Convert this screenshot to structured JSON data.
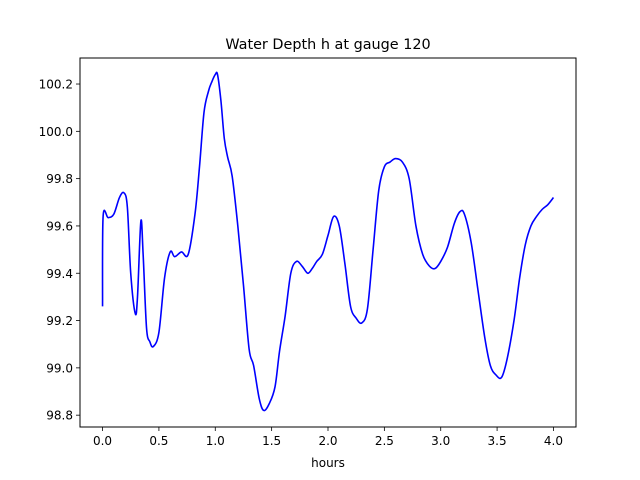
{
  "chart_data": {
    "type": "line",
    "title": "Water Depth h at gauge 120",
    "xlabel": "hours",
    "ylabel": "",
    "xlim": [
      -0.2,
      4.2
    ],
    "ylim": [
      98.75,
      100.31
    ],
    "xticks": [
      0.0,
      0.5,
      1.0,
      1.5,
      2.0,
      2.5,
      3.0,
      3.5,
      4.0
    ],
    "xtick_labels": [
      "0.0",
      "0.5",
      "1.0",
      "1.5",
      "2.0",
      "2.5",
      "3.0",
      "3.5",
      "4.0"
    ],
    "yticks": [
      98.8,
      99.0,
      99.2,
      99.4,
      99.6,
      99.8,
      100.0,
      100.2
    ],
    "ytick_labels": [
      "98.8",
      "99.0",
      "99.2",
      "99.4",
      "99.6",
      "99.8",
      "100.0",
      "100.2"
    ],
    "grid": false,
    "series": [
      {
        "color": "#0000ff",
        "points": [
          [
            0.0,
            99.26
          ],
          [
            0.005,
            99.64
          ],
          [
            0.05,
            99.635
          ],
          [
            0.1,
            99.65
          ],
          [
            0.15,
            99.72
          ],
          [
            0.19,
            99.74
          ],
          [
            0.22,
            99.68
          ],
          [
            0.25,
            99.4
          ],
          [
            0.29,
            99.23
          ],
          [
            0.31,
            99.3
          ],
          [
            0.34,
            99.62
          ],
          [
            0.36,
            99.48
          ],
          [
            0.39,
            99.17
          ],
          [
            0.42,
            99.11
          ],
          [
            0.45,
            99.09
          ],
          [
            0.5,
            99.15
          ],
          [
            0.55,
            99.38
          ],
          [
            0.6,
            99.49
          ],
          [
            0.64,
            99.47
          ],
          [
            0.7,
            99.49
          ],
          [
            0.76,
            99.48
          ],
          [
            0.82,
            99.65
          ],
          [
            0.86,
            99.85
          ],
          [
            0.9,
            100.08
          ],
          [
            0.94,
            100.17
          ],
          [
            0.97,
            100.21
          ],
          [
            1.0,
            100.24
          ],
          [
            1.02,
            100.24
          ],
          [
            1.05,
            100.13
          ],
          [
            1.08,
            99.97
          ],
          [
            1.11,
            99.89
          ],
          [
            1.15,
            99.81
          ],
          [
            1.2,
            99.6
          ],
          [
            1.25,
            99.35
          ],
          [
            1.3,
            99.08
          ],
          [
            1.34,
            99.01
          ],
          [
            1.39,
            98.87
          ],
          [
            1.43,
            98.82
          ],
          [
            1.48,
            98.85
          ],
          [
            1.53,
            98.92
          ],
          [
            1.57,
            99.07
          ],
          [
            1.62,
            99.22
          ],
          [
            1.67,
            99.4
          ],
          [
            1.72,
            99.45
          ],
          [
            1.77,
            99.43
          ],
          [
            1.82,
            99.4
          ],
          [
            1.86,
            99.42
          ],
          [
            1.9,
            99.45
          ],
          [
            1.95,
            99.48
          ],
          [
            2.0,
            99.56
          ],
          [
            2.05,
            99.64
          ],
          [
            2.1,
            99.6
          ],
          [
            2.15,
            99.44
          ],
          [
            2.2,
            99.26
          ],
          [
            2.25,
            99.21
          ],
          [
            2.3,
            99.19
          ],
          [
            2.35,
            99.25
          ],
          [
            2.4,
            99.5
          ],
          [
            2.45,
            99.75
          ],
          [
            2.5,
            99.85
          ],
          [
            2.55,
            99.87
          ],
          [
            2.6,
            99.885
          ],
          [
            2.66,
            99.87
          ],
          [
            2.72,
            99.8
          ],
          [
            2.78,
            99.6
          ],
          [
            2.84,
            99.48
          ],
          [
            2.9,
            99.43
          ],
          [
            2.95,
            99.42
          ],
          [
            3.0,
            99.45
          ],
          [
            3.06,
            99.51
          ],
          [
            3.12,
            99.61
          ],
          [
            3.17,
            99.66
          ],
          [
            3.21,
            99.65
          ],
          [
            3.27,
            99.53
          ],
          [
            3.33,
            99.33
          ],
          [
            3.39,
            99.13
          ],
          [
            3.44,
            99.01
          ],
          [
            3.49,
            98.97
          ],
          [
            3.54,
            98.96
          ],
          [
            3.59,
            99.04
          ],
          [
            3.65,
            99.2
          ],
          [
            3.7,
            99.38
          ],
          [
            3.75,
            99.52
          ],
          [
            3.8,
            99.6
          ],
          [
            3.85,
            99.64
          ],
          [
            3.9,
            99.67
          ],
          [
            3.95,
            99.69
          ],
          [
            4.0,
            99.72
          ]
        ]
      }
    ]
  }
}
